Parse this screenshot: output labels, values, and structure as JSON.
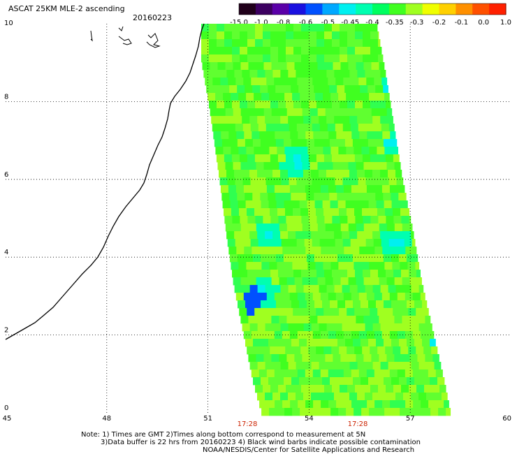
{
  "title": "ASCAT 25KM MLE-2 ascending",
  "date": "20160223",
  "colorbar": {
    "labels": [
      "-15.0",
      "-1.0",
      "-0.8",
      "-0.6",
      "-0.5",
      "-0.45",
      "-0.4",
      "-0.35",
      "-0.3",
      "-0.2",
      "-0.1",
      "0.0",
      "1.0"
    ],
    "colors": [
      "#20001a",
      "#3c0060",
      "#5a00a8",
      "#1a10e0",
      "#0050ff",
      "#00a8ff",
      "#00f0f0",
      "#00ffb0",
      "#00ff60",
      "#40ff20",
      "#a0ff20",
      "#f0ff00",
      "#ffd000",
      "#ff9000",
      "#ff5000",
      "#ff2000"
    ]
  },
  "axes": {
    "lon_ticks": [
      45,
      48,
      51,
      54,
      57,
      60
    ],
    "lat_ticks": [
      0,
      2,
      4,
      6,
      8,
      10
    ],
    "lon_range": [
      45,
      60
    ],
    "lat_range": [
      0,
      10
    ]
  },
  "swath_times": [
    "17:28",
    "17:28"
  ],
  "notes": [
    "Note: 1) Times are GMT 2)Times along bottom correspond to measurement at 5N",
    "3)Data buffer is 22 hrs from 20160223 4) Black wind barbs indicate possible contamination",
    "NOAA/NESDIS/Center for Satellite Applications and Research"
  ]
}
